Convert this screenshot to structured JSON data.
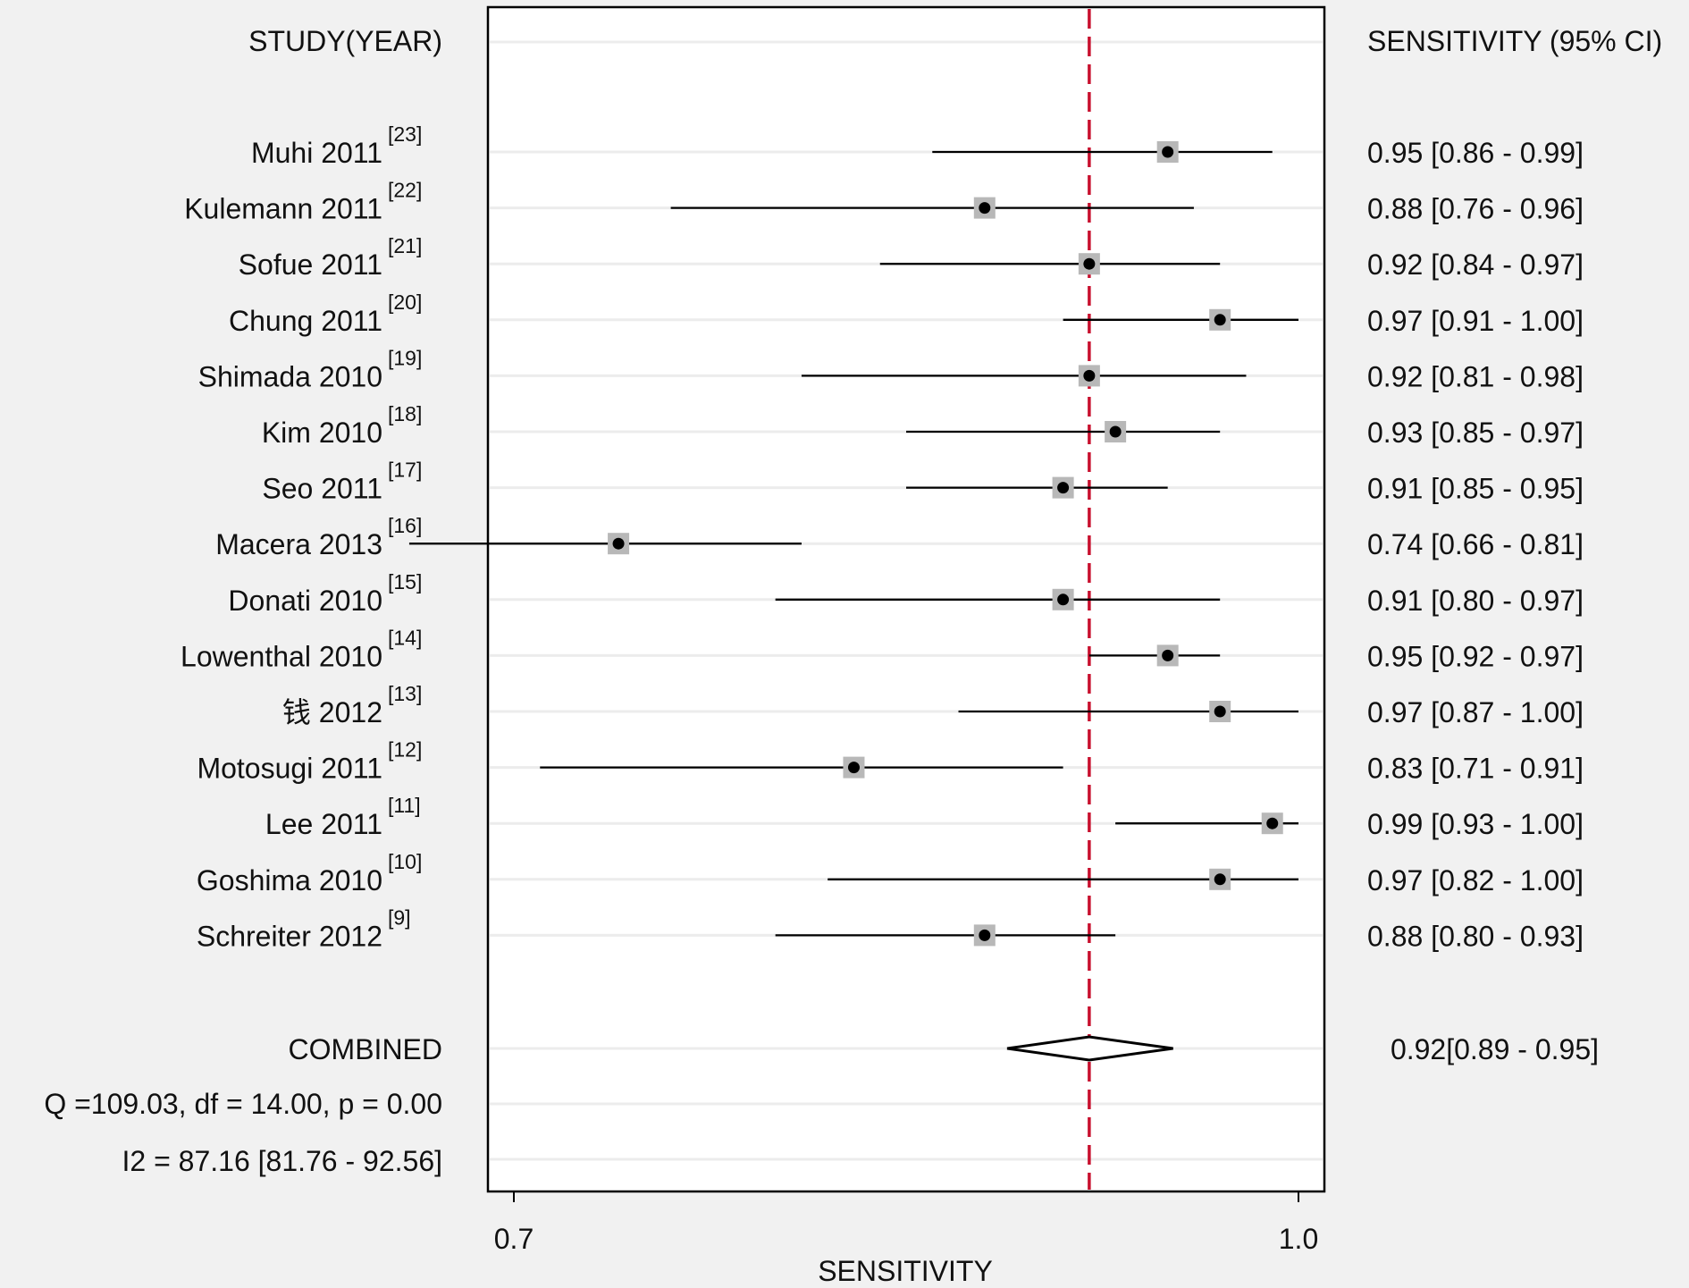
{
  "chart_data": {
    "type": "forest",
    "left_header": "STUDY(YEAR)",
    "right_header": "SENSITIVITY (95% CI)",
    "xlabel": "SENSITIVITY",
    "xlim": [
      0.7,
      1.0
    ],
    "xticks": [
      "0.7",
      "1.0"
    ],
    "reference_line": 0.92,
    "studies": [
      {
        "name": "Muhi",
        "year": "2011",
        "ref": "[23]",
        "est": 0.95,
        "lo": 0.86,
        "hi": 0.99,
        "ci_text": "0.95 [0.86 - 0.99]"
      },
      {
        "name": "Kulemann",
        "year": "2011",
        "ref": "[22]",
        "est": 0.88,
        "lo": 0.76,
        "hi": 0.96,
        "ci_text": "0.88 [0.76 - 0.96]"
      },
      {
        "name": "Sofue",
        "year": "2011",
        "ref": "[21]",
        "est": 0.92,
        "lo": 0.84,
        "hi": 0.97,
        "ci_text": "0.92 [0.84 - 0.97]"
      },
      {
        "name": "Chung",
        "year": "2011",
        "ref": "[20]",
        "est": 0.97,
        "lo": 0.91,
        "hi": 1.0,
        "ci_text": "0.97 [0.91 - 1.00]"
      },
      {
        "name": "Shimada",
        "year": "2010",
        "ref": "[19]",
        "est": 0.92,
        "lo": 0.81,
        "hi": 0.98,
        "ci_text": "0.92 [0.81 - 0.98]"
      },
      {
        "name": "Kim",
        "year": "2010",
        "ref": "[18]",
        "est": 0.93,
        "lo": 0.85,
        "hi": 0.97,
        "ci_text": "0.93 [0.85 - 0.97]"
      },
      {
        "name": "Seo",
        "year": "2011",
        "ref": "[17]",
        "est": 0.91,
        "lo": 0.85,
        "hi": 0.95,
        "ci_text": "0.91 [0.85 - 0.95]"
      },
      {
        "name": "Macera",
        "year": "2013",
        "ref": "[16]",
        "est": 0.74,
        "lo": 0.66,
        "hi": 0.81,
        "ci_text": "0.74 [0.66 - 0.81]"
      },
      {
        "name": "Donati",
        "year": "2010",
        "ref": "[15]",
        "est": 0.91,
        "lo": 0.8,
        "hi": 0.97,
        "ci_text": "0.91 [0.80 - 0.97]"
      },
      {
        "name": "Lowenthal",
        "year": "2010",
        "ref": "[14]",
        "est": 0.95,
        "lo": 0.92,
        "hi": 0.97,
        "ci_text": "0.95 [0.92 - 0.97]"
      },
      {
        "name": "钱",
        "year": "2012",
        "ref": "[13]",
        "est": 0.97,
        "lo": 0.87,
        "hi": 1.0,
        "ci_text": "0.97 [0.87 - 1.00]"
      },
      {
        "name": "Motosugi",
        "year": "2011",
        "ref": "[12]",
        "est": 0.83,
        "lo": 0.71,
        "hi": 0.91,
        "ci_text": "0.83 [0.71 - 0.91]"
      },
      {
        "name": "Lee",
        "year": "2011",
        "ref": "[11]",
        "est": 0.99,
        "lo": 0.93,
        "hi": 1.0,
        "ci_text": "0.99 [0.93 - 1.00]"
      },
      {
        "name": "Goshima",
        "year": "2010",
        "ref": "[10]",
        "est": 0.97,
        "lo": 0.82,
        "hi": 1.0,
        "ci_text": "0.97 [0.82 - 1.00]"
      },
      {
        "name": "Schreiter",
        "year": "2012",
        "ref": "[9]",
        "est": 0.88,
        "lo": 0.8,
        "hi": 0.93,
        "ci_text": "0.88 [0.80 - 0.93]"
      }
    ],
    "combined": {
      "label": "COMBINED",
      "est": 0.92,
      "lo": 0.89,
      "hi": 0.95,
      "ci_text": "0.92[0.89 - 0.95]"
    },
    "heterogeneity": [
      "Q =109.03, df = 14.00, p =  0.00",
      "I2 = 87.16 [81.76 - 92.56]"
    ],
    "colors": {
      "reference_line": "#c8102e",
      "marker_box": "#b8b8b8",
      "point": "#000000",
      "background": "#f1f1f1"
    }
  }
}
